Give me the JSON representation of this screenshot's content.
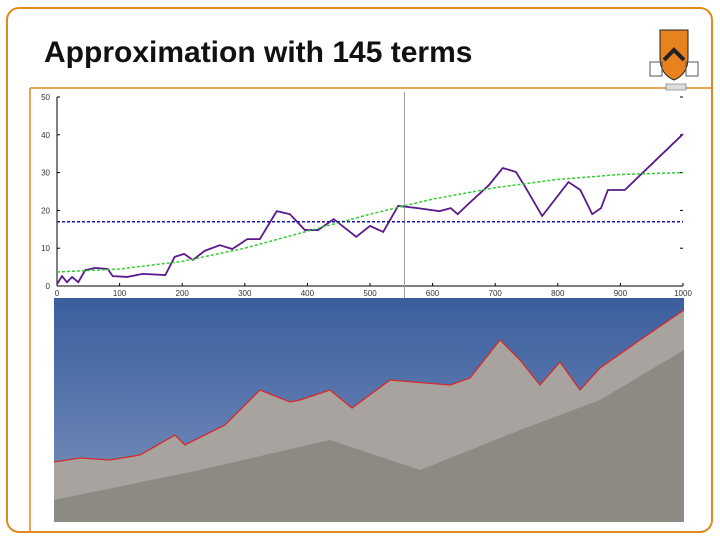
{
  "chart_data": {
    "type": "line",
    "title": "Approximation with 145 terms",
    "xlim": [
      0,
      1000
    ],
    "xticks": [
      0,
      100,
      200,
      300,
      400,
      500,
      600,
      700,
      800,
      900,
      1000
    ],
    "ylim": [
      0,
      50
    ],
    "yticks": [
      0,
      10,
      20,
      30,
      40,
      50
    ],
    "vline_x": 555,
    "series": [
      {
        "color": "#5b1a8c",
        "dashed": false,
        "x": [
          0,
          8,
          16,
          24,
          34,
          45,
          61,
          81,
          89,
          112,
          137,
          173,
          188,
          203,
          217,
          236,
          260,
          280,
          304,
          324,
          351,
          372,
          396,
          417,
          442,
          478,
          500,
          521,
          545,
          576,
          611,
          629,
          640,
          659,
          690,
          712,
          733,
          748,
          775,
          817,
          836,
          855,
          869,
          880,
          907,
          1000
        ],
        "values": [
          0.5,
          2.6,
          1,
          2.4,
          1,
          4.2,
          4.8,
          4.5,
          2.6,
          2.4,
          3.2,
          2.9,
          7.7,
          8.5,
          6.9,
          9.3,
          10.8,
          9.8,
          12.4,
          12.4,
          19.8,
          19,
          14.8,
          14.8,
          17.7,
          13,
          15.9,
          14.3,
          21.2,
          20.6,
          19.8,
          20.6,
          19,
          22,
          26.7,
          31.2,
          30.2,
          26.2,
          18.5,
          27.5,
          25.4,
          19,
          20.6,
          25.4,
          25.4,
          40.2
        ]
      },
      {
        "color": "#33cc33",
        "dashed": true,
        "x": [
          0,
          100,
          200,
          300,
          400,
          500,
          600,
          700,
          800,
          900,
          1000
        ],
        "values": [
          3.7,
          4.5,
          6.5,
          10,
          14.5,
          19,
          23,
          26,
          28.2,
          29.5,
          30
        ]
      },
      {
        "color": "#1a1aa8",
        "dashed": true,
        "x": [
          0,
          1000
        ],
        "values": [
          17,
          17
        ]
      }
    ]
  }
}
